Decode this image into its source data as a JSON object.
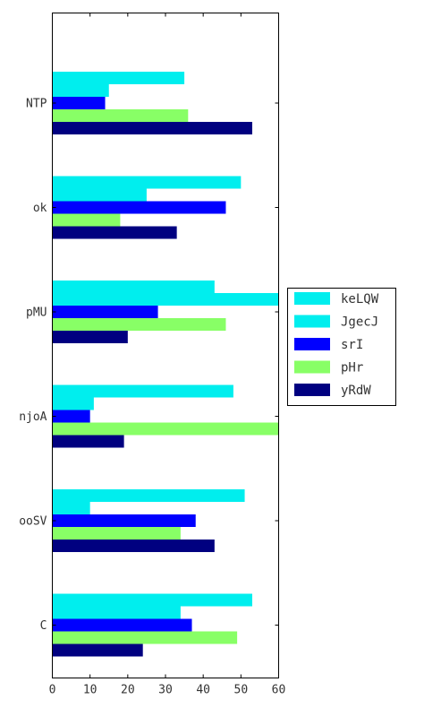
{
  "chart_data": {
    "type": "bar",
    "orientation": "horizontal",
    "categories": [
      "NTP",
      "ok",
      "pMU",
      "njoA",
      "ooSV",
      "C"
    ],
    "series": [
      {
        "name": "keLQW",
        "color": "#00eeee",
        "values": [
          35,
          50,
          43,
          48,
          51,
          53
        ]
      },
      {
        "name": "JgecJ",
        "color": "#00eeee",
        "values": [
          15,
          25,
          60,
          11,
          10,
          34
        ]
      },
      {
        "name": "srI",
        "color": "#0000ff",
        "values": [
          14,
          46,
          28,
          10,
          38,
          37
        ]
      },
      {
        "name": "pHr",
        "color": "#88ff66",
        "values": [
          36,
          18,
          46,
          60,
          34,
          49
        ]
      },
      {
        "name": "yRdW",
        "color": "#000080",
        "values": [
          53,
          33,
          20,
          19,
          43,
          24
        ]
      }
    ],
    "xlim": [
      0,
      60
    ],
    "xticks": [
      "0",
      "10",
      "20",
      "30",
      "40",
      "50",
      "60"
    ],
    "title": "",
    "xlabel": "",
    "ylabel": "",
    "grid": false,
    "legend_position": "right"
  }
}
